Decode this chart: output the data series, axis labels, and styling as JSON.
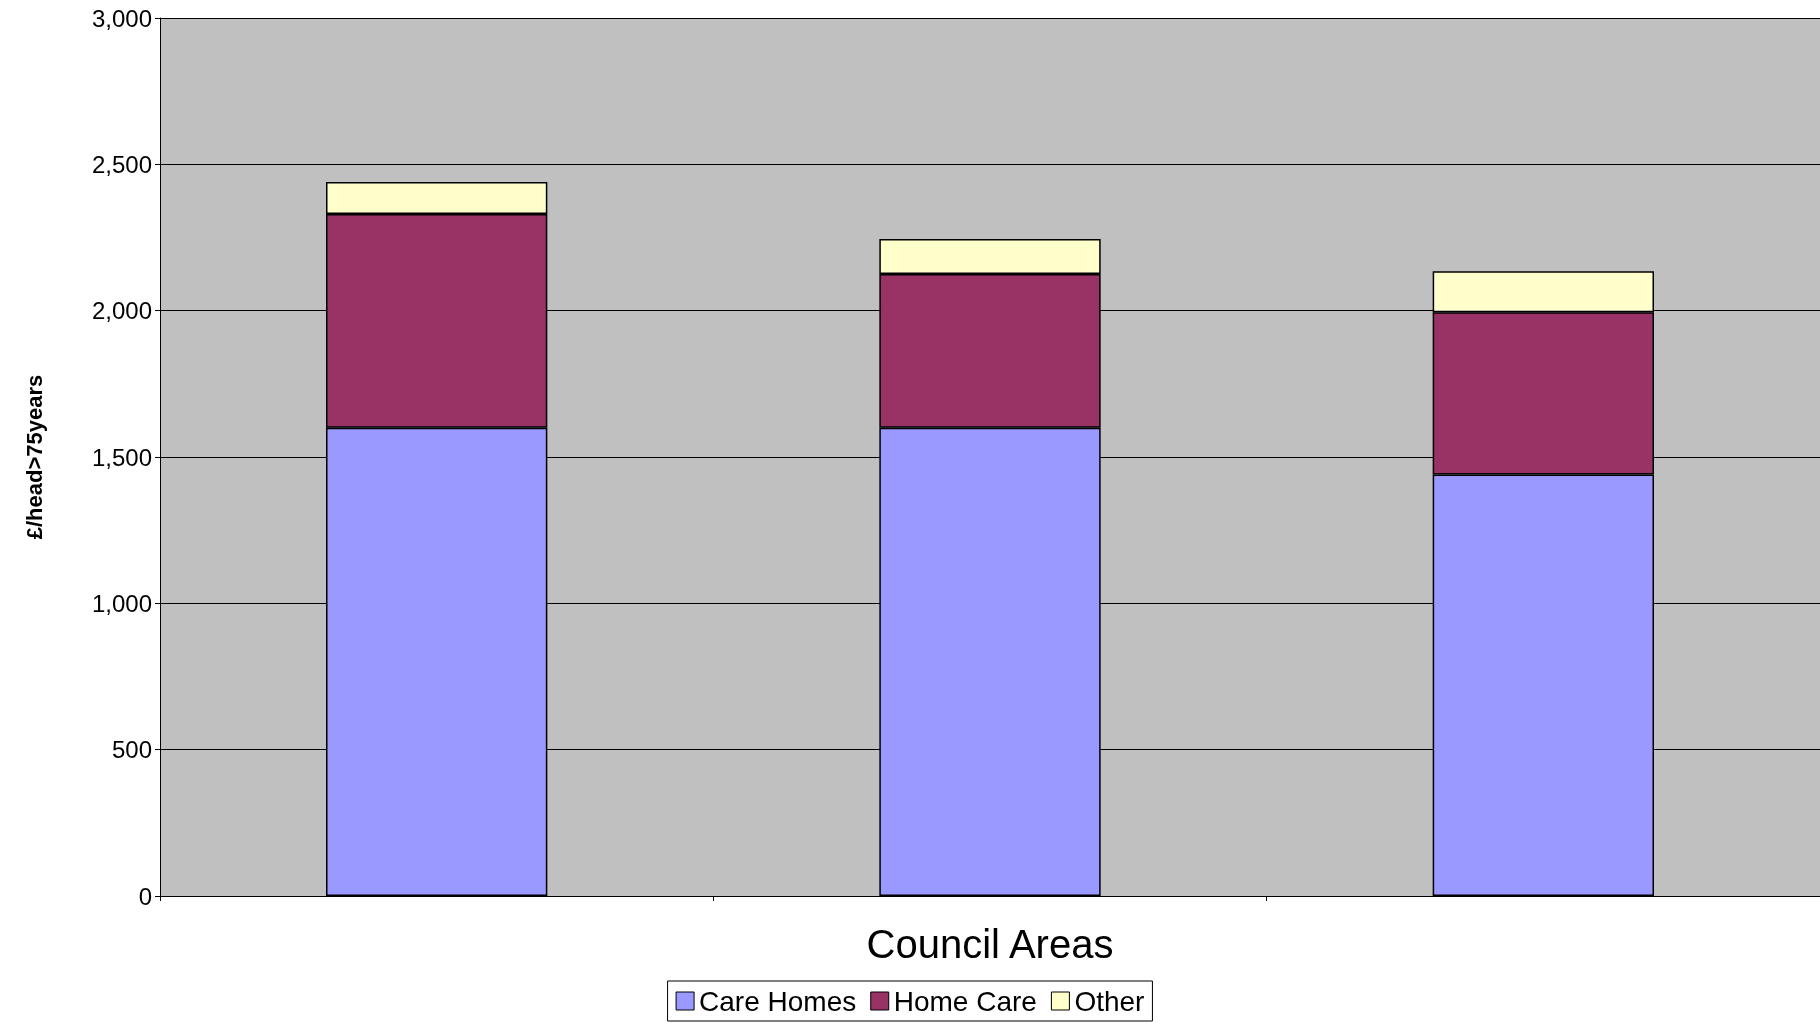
{
  "chart_data": {
    "type": "bar",
    "xlabel": "Council Areas",
    "ylabel": "£/head>75years",
    "categories": [
      null,
      null,
      null
    ],
    "stacked": true,
    "series": [
      {
        "name": "Care Homes",
        "color": "#9999ff",
        "values": [
          1600,
          1600,
          1440
        ]
      },
      {
        "name": "Home Care",
        "color": "#993366",
        "values": [
          730,
          525,
          555
        ]
      },
      {
        "name": "Other",
        "color": "#ffffcc",
        "values": [
          110,
          120,
          140
        ]
      }
    ],
    "ylim": [
      0,
      3000
    ],
    "yticks": [
      0,
      500,
      {
        "value": 1000,
        "label": "1,000"
      },
      {
        "value": 1500,
        "label": "1,500"
      },
      {
        "value": 2000,
        "label": "2,000"
      },
      {
        "value": 2500,
        "label": "2,500"
      },
      {
        "value": 3000,
        "label": "3,000"
      }
    ],
    "grid": "y",
    "legend": "bottom"
  }
}
